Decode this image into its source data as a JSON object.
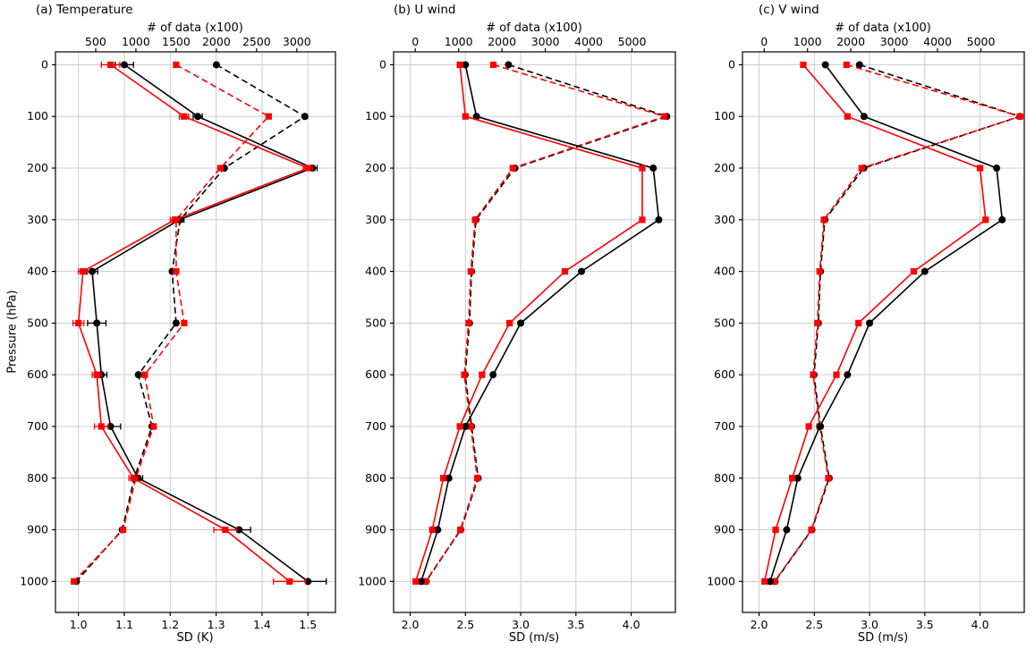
{
  "figure": {
    "background": "#ffffff",
    "grid_color": "#cccccc",
    "series_colors": {
      "black": "#000000",
      "red": "#ff0000"
    }
  },
  "chart_data": {
    "type": "line",
    "pressure_levels": [
      0,
      100,
      200,
      300,
      400,
      500,
      600,
      700,
      800,
      900,
      1000
    ],
    "y_axis": {
      "label": "Pressure (hPa)",
      "min": -25,
      "max": 1060,
      "inverted": true,
      "ticks": [
        0,
        100,
        200,
        300,
        400,
        500,
        600,
        700,
        800,
        900,
        1000
      ]
    },
    "panels": [
      {
        "id": "a",
        "title": "(a) Temperature",
        "xlabel_bottom": "SD (K)",
        "xlabel_top": "# of data (x100)",
        "x_bottom": {
          "min": 0.95,
          "max": 1.56,
          "ticks": [
            1.0,
            1.1,
            1.2,
            1.3,
            1.4,
            1.5
          ],
          "tick_labels": [
            "1.0",
            "1.1",
            "1.2",
            "1.3",
            "1.4",
            "1.5"
          ]
        },
        "x_top": {
          "min": 0,
          "max": 3480,
          "ticks": [
            500,
            1000,
            1500,
            2000,
            2500,
            3000
          ],
          "tick_labels": [
            "500",
            "1000",
            "1500",
            "2000",
            "2500",
            "3000"
          ]
        },
        "series": [
          {
            "name": "sd-solid-black",
            "axis": "bottom",
            "color": "#000000",
            "line": "solid",
            "marker": "circle",
            "values": [
              1.1,
              1.26,
              1.51,
              1.22,
              1.03,
              1.04,
              1.05,
              1.07,
              1.13,
              1.35,
              1.5
            ],
            "xerr": [
              0.02,
              0.01,
              0.01,
              0.01,
              0.012,
              0.02,
              0.012,
              0.022,
              0.01,
              0.025,
              0.04
            ]
          },
          {
            "name": "sd-solid-red",
            "axis": "bottom",
            "color": "#ff0000",
            "line": "solid",
            "marker": "square",
            "values": [
              1.07,
              1.23,
              1.5,
              1.21,
              1.01,
              1.0,
              1.04,
              1.05,
              1.12,
              1.32,
              1.46
            ],
            "xerr": [
              0.02,
              0.01,
              0.01,
              0.01,
              0.01,
              0.012,
              0.01,
              0.015,
              0.01,
              0.025,
              0.035
            ]
          },
          {
            "name": "ndata-dashed-black",
            "axis": "top",
            "color": "#000000",
            "line": "dashed",
            "marker": "circle",
            "values": [
              2000,
              3100,
              2100,
              1550,
              1450,
              1500,
              1030,
              1200,
              980,
              830,
              260
            ]
          },
          {
            "name": "ndata-dashed-red",
            "axis": "top",
            "color": "#ff0000",
            "line": "dashed",
            "marker": "square",
            "values": [
              1500,
              2650,
              2050,
              1500,
              1500,
              1600,
              1110,
              1220,
              1000,
              840,
              230
            ]
          }
        ]
      },
      {
        "id": "b",
        "title": "(b) U wind",
        "xlabel_bottom": "SD (m/s)",
        "xlabel_top": "# of data (x100)",
        "x_bottom": {
          "min": 1.85,
          "max": 4.4,
          "ticks": [
            2.0,
            2.5,
            3.0,
            3.5,
            4.0
          ],
          "tick_labels": [
            "2.0",
            "2.5",
            "3.0",
            "3.5",
            "4.0"
          ]
        },
        "x_top": {
          "min": -500,
          "max": 6000,
          "ticks": [
            0,
            1000,
            2000,
            3000,
            4000,
            5000
          ],
          "tick_labels": [
            "0",
            "1000",
            "2000",
            "3000",
            "4000",
            "5000"
          ]
        },
        "series": [
          {
            "name": "sd-solid-black",
            "axis": "bottom",
            "color": "#000000",
            "line": "solid",
            "marker": "circle",
            "values": [
              2.5,
              2.6,
              4.2,
              4.25,
              3.55,
              3.0,
              2.75,
              2.5,
              2.35,
              2.25,
              2.1
            ]
          },
          {
            "name": "sd-solid-red",
            "axis": "bottom",
            "color": "#ff0000",
            "line": "solid",
            "marker": "square",
            "values": [
              2.45,
              2.5,
              4.1,
              4.1,
              3.4,
              2.9,
              2.65,
              2.45,
              2.3,
              2.2,
              2.05
            ]
          },
          {
            "name": "ndata-dashed-black",
            "axis": "top",
            "color": "#000000",
            "line": "dashed",
            "marker": "circle",
            "values": [
              2150,
              5800,
              2300,
              1400,
              1300,
              1250,
              1150,
              1300,
              1450,
              1050,
              250
            ]
          },
          {
            "name": "ndata-dashed-red",
            "axis": "top",
            "color": "#ff0000",
            "line": "dashed",
            "marker": "square",
            "values": [
              1800,
              5750,
              2250,
              1380,
              1280,
              1230,
              1130,
              1280,
              1430,
              1040,
              240
            ]
          }
        ]
      },
      {
        "id": "c",
        "title": "(c) V wind",
        "xlabel_bottom": "SD (m/s)",
        "xlabel_top": "# of data (x100)",
        "x_bottom": {
          "min": 1.85,
          "max": 4.4,
          "ticks": [
            2.0,
            2.5,
            3.0,
            3.5,
            4.0
          ],
          "tick_labels": [
            "2.0",
            "2.5",
            "3.0",
            "3.5",
            "4.0"
          ]
        },
        "x_top": {
          "min": -500,
          "max": 6000,
          "ticks": [
            0,
            1000,
            2000,
            3000,
            4000,
            5000
          ],
          "tick_labels": [
            "0",
            "1000",
            "2000",
            "3000",
            "4000",
            "5000"
          ]
        },
        "series": [
          {
            "name": "sd-solid-black",
            "axis": "bottom",
            "color": "#000000",
            "line": "solid",
            "marker": "circle",
            "values": [
              2.6,
              2.95,
              4.15,
              4.2,
              3.5,
              3.0,
              2.8,
              2.55,
              2.35,
              2.25,
              2.1
            ]
          },
          {
            "name": "sd-solid-red",
            "axis": "bottom",
            "color": "#ff0000",
            "line": "solid",
            "marker": "square",
            "values": [
              2.4,
              2.8,
              4.0,
              4.05,
              3.4,
              2.9,
              2.7,
              2.45,
              2.3,
              2.15,
              2.05
            ]
          },
          {
            "name": "ndata-dashed-black",
            "axis": "top",
            "color": "#000000",
            "line": "dashed",
            "marker": "circle",
            "values": [
              2200,
              5900,
              2300,
              1400,
              1300,
              1250,
              1150,
              1300,
              1500,
              1100,
              250
            ]
          },
          {
            "name": "ndata-dashed-red",
            "axis": "top",
            "color": "#ff0000",
            "line": "dashed",
            "marker": "square",
            "values": [
              1900,
              5900,
              2250,
              1380,
              1280,
              1230,
              1130,
              1280,
              1480,
              1090,
              240
            ]
          }
        ]
      }
    ]
  }
}
